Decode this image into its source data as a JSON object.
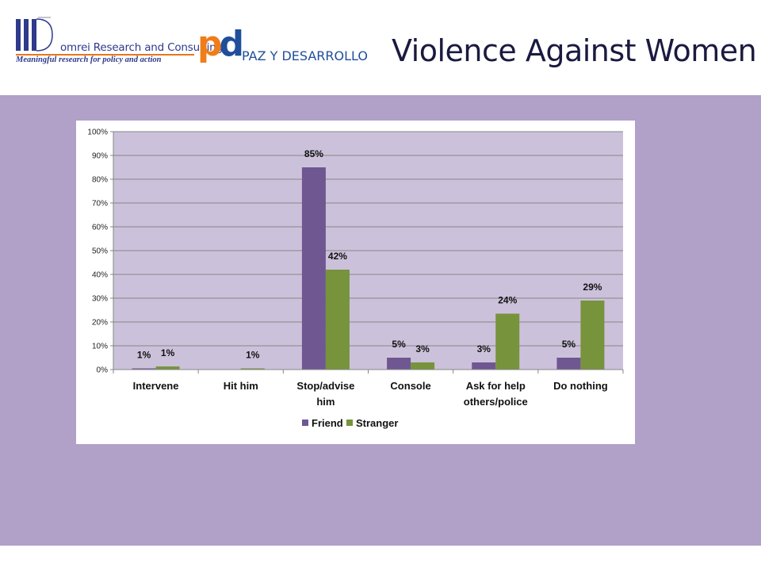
{
  "header": {
    "domrei_name": "omrei Research and Consulting",
    "domrei_tagline": "Meaningful research for policy and action",
    "pd_name": "PAZ Y DESARROLLO",
    "title": "Violence Against Women"
  },
  "colors": {
    "friend": "#6f5792",
    "stranger": "#77933c",
    "plot_bg": "#ccc1da",
    "band": "#b1a0c7"
  },
  "chart_data": {
    "type": "bar",
    "categories": [
      "Intervene",
      "Hit him",
      "Stop/advise him",
      "Console",
      "Ask for help others/police",
      "Do nothing"
    ],
    "category_lines": [
      [
        "Intervene"
      ],
      [
        "Hit him"
      ],
      [
        "Stop/advise",
        "him"
      ],
      [
        "Console"
      ],
      [
        "Ask for help",
        "others/police"
      ],
      [
        "Do nothing"
      ]
    ],
    "series": [
      {
        "name": "Friend",
        "values": [
          0.5,
          0,
          85,
          5,
          3,
          5
        ],
        "labels": [
          "1%",
          "",
          "85%",
          "5%",
          "3%",
          "5%"
        ]
      },
      {
        "name": "Stranger",
        "values": [
          1.3,
          0.5,
          42,
          3,
          23.5,
          29
        ],
        "labels": [
          "1%",
          "1%",
          "42%",
          "3%",
          "24%",
          "29%"
        ]
      }
    ],
    "ylim": [
      0,
      100
    ],
    "yticks": [
      "0%",
      "10%",
      "20%",
      "30%",
      "40%",
      "50%",
      "60%",
      "70%",
      "80%",
      "90%",
      "100%"
    ],
    "grid": true,
    "legend_position": "bottom"
  }
}
